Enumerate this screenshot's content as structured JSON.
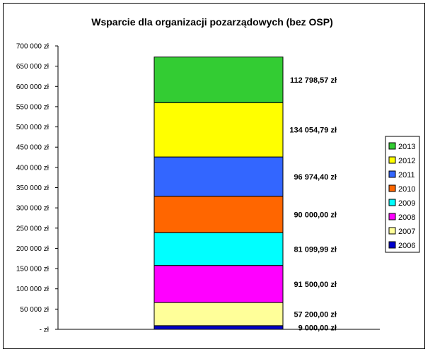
{
  "chart_data": {
    "type": "bar",
    "stacked": true,
    "title": "Wsparcie dla organizacji pozarządowych (bez OSP)",
    "xlabel": "",
    "ylabel": "",
    "ylim": [
      0,
      700000
    ],
    "y_ticks": [
      0,
      50000,
      100000,
      150000,
      200000,
      250000,
      300000,
      350000,
      400000,
      450000,
      500000,
      550000,
      600000,
      650000,
      700000
    ],
    "y_tick_labels": [
      "- zł",
      "50 000 zł",
      "100 000 zł",
      "150 000 zł",
      "200 000 zł",
      "250 000 zł",
      "300 000 zł",
      "350 000 zł",
      "400 000 zł",
      "450 000 zł",
      "500 000 zł",
      "550 000 zł",
      "600 000 zł",
      "650 000 zł",
      "700 000 zł"
    ],
    "grid": false,
    "legend_position": "right",
    "series": [
      {
        "name": "2006",
        "value": 9000.0,
        "label": "9 000,00 zł",
        "color": "#0000cc"
      },
      {
        "name": "2007",
        "value": 57200.0,
        "label": "57 200,00 zł",
        "color": "#ffff99"
      },
      {
        "name": "2008",
        "value": 91500.0,
        "label": "91 500,00 zł",
        "color": "#ff00ff"
      },
      {
        "name": "2009",
        "value": 81099.99,
        "label": "81 099,99 zł",
        "color": "#00ffff"
      },
      {
        "name": "2010",
        "value": 90000.0,
        "label": "90 000,00 zł",
        "color": "#ff6600"
      },
      {
        "name": "2011",
        "value": 96974.4,
        "label": "96 974,40 zł",
        "color": "#3366ff"
      },
      {
        "name": "2012",
        "value": 134054.79,
        "label": "134 054,79 zł",
        "color": "#ffff00"
      },
      {
        "name": "2013",
        "value": 112798.57,
        "label": "112 798,57 zł",
        "color": "#33cc33"
      }
    ]
  }
}
